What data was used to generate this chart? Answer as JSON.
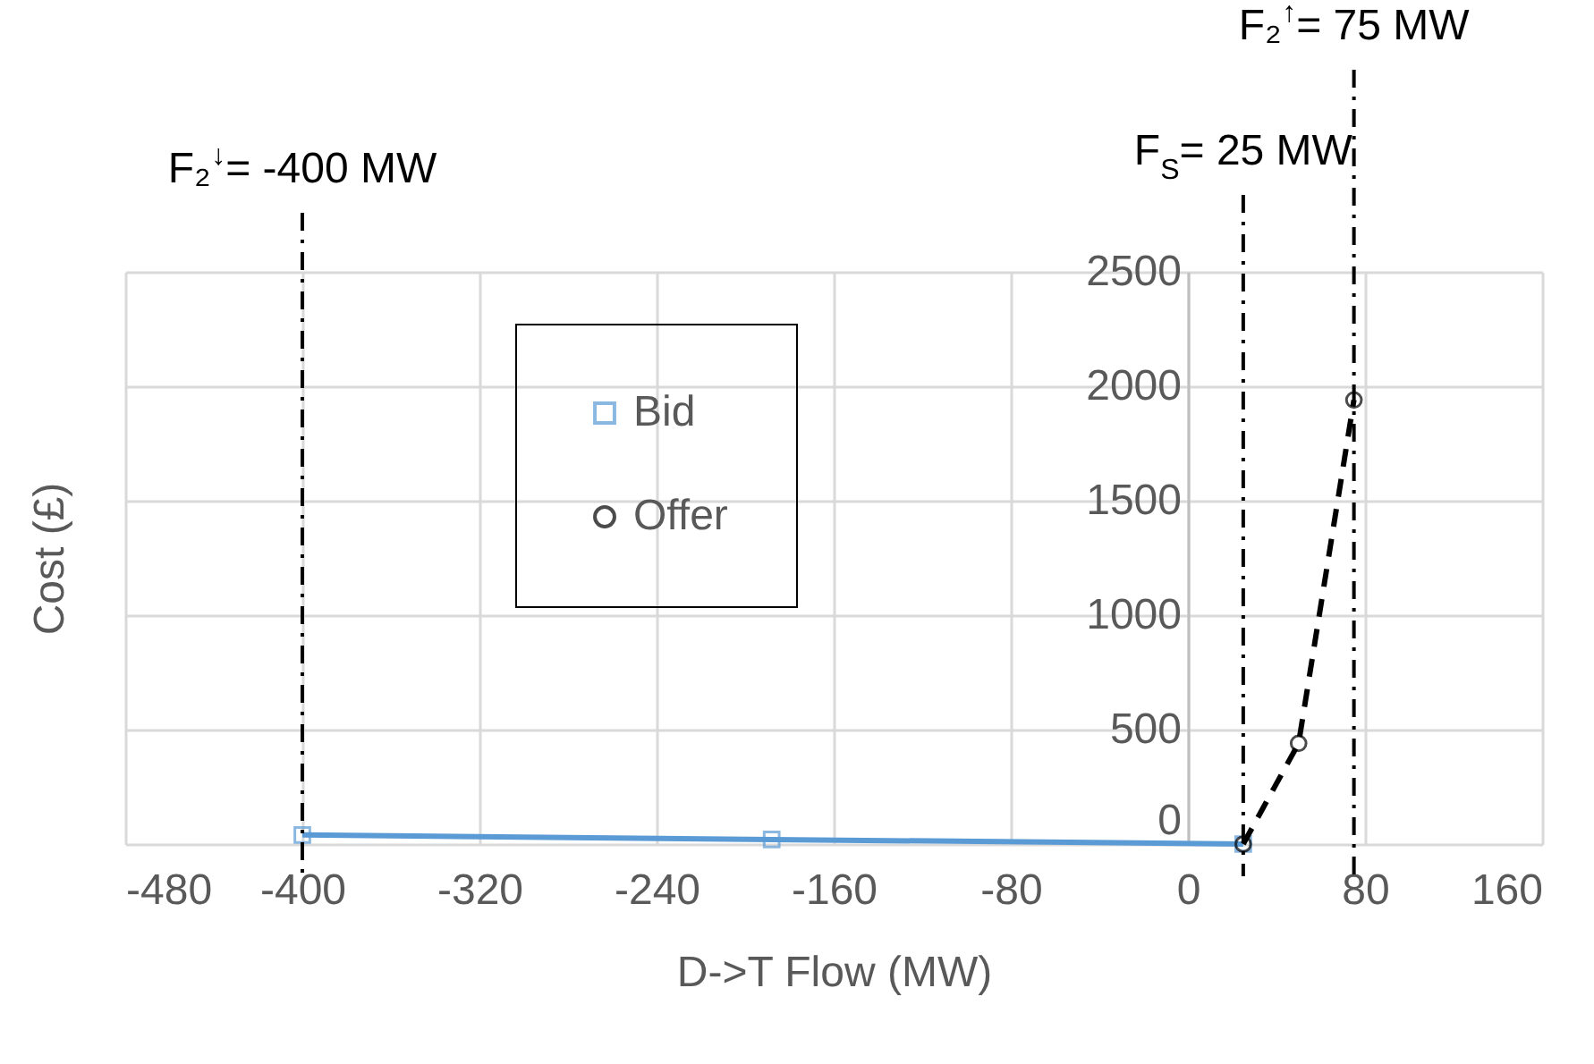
{
  "chart_data": {
    "type": "line",
    "xlabel": "D->T Flow (MW)",
    "ylabel": "Cost (£)",
    "xlim": [
      -480,
      160
    ],
    "xticks": [
      -480,
      -400,
      -320,
      -240,
      -160,
      -80,
      0,
      80,
      160
    ],
    "ylim": [
      0,
      2500
    ],
    "yticks": [
      0,
      500,
      1000,
      1500,
      2000,
      2500
    ],
    "grid": true,
    "legend": "top left",
    "series": [
      {
        "name": "Bid",
        "color": "#5b9bd5",
        "x": [
          -400,
          -188,
          25
        ],
        "values": [
          40,
          20,
          0
        ],
        "marker": "square",
        "line_style": "solid"
      },
      {
        "name": "Offer",
        "color": "#000000",
        "x": [
          25,
          50,
          75
        ],
        "values": [
          0,
          440,
          1940
        ],
        "marker": "circle",
        "line_style": "dashed"
      }
    ],
    "ref_lines": [
      {
        "axis": "x",
        "value": -400,
        "label": "F₂$^{↓}$= -400 MW",
        "color": "#000000",
        "line_style": "dashdot"
      },
      {
        "axis": "x",
        "value": 25,
        "label": "F$_{S}$= 25 MW",
        "color": "#000000",
        "line_style": "dashdot"
      },
      {
        "axis": "x",
        "value": 75,
        "label": "F₂$^{↑}$= 75 MW",
        "color": "#000000",
        "line_style": "dashdot"
      }
    ]
  }
}
